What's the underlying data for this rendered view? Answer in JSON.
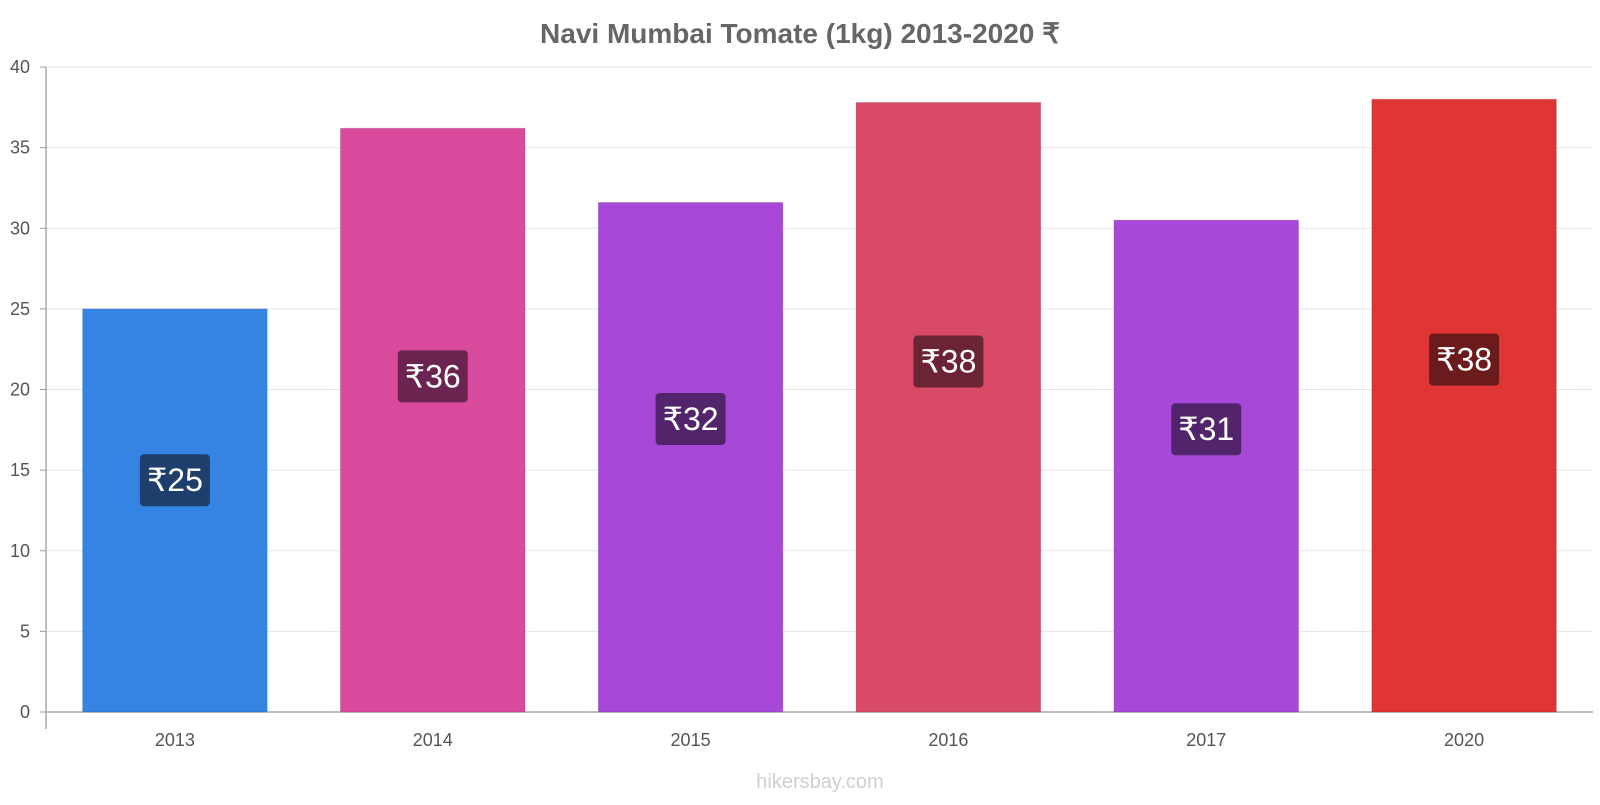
{
  "chart_data": {
    "type": "bar",
    "title": "Navi Mumbai Tomate (1kg) 2013-2020 ₹",
    "xlabel": "",
    "ylabel": "",
    "categories": [
      "2013",
      "2014",
      "2015",
      "2016",
      "2017",
      "2020"
    ],
    "values": [
      25,
      36.2,
      31.6,
      37.8,
      30.5,
      38
    ],
    "value_labels": [
      "₹25",
      "₹36",
      "₹32",
      "₹38",
      "₹31",
      "₹38"
    ],
    "bar_colors": [
      "#3584e4",
      "#d9499c",
      "#a748d8",
      "#d84a66",
      "#a748d8",
      "#e03535"
    ],
    "label_bg_colors": [
      "#1e3f6b",
      "#6b2450",
      "#51246b",
      "#6b2434",
      "#51246b",
      "#6b1b1b"
    ],
    "ylim": [
      0,
      40
    ],
    "yticks": [
      0,
      5,
      10,
      15,
      20,
      25,
      30,
      35,
      40
    ],
    "grid": true,
    "legend": "none"
  },
  "watermark": "hikersbay.com"
}
